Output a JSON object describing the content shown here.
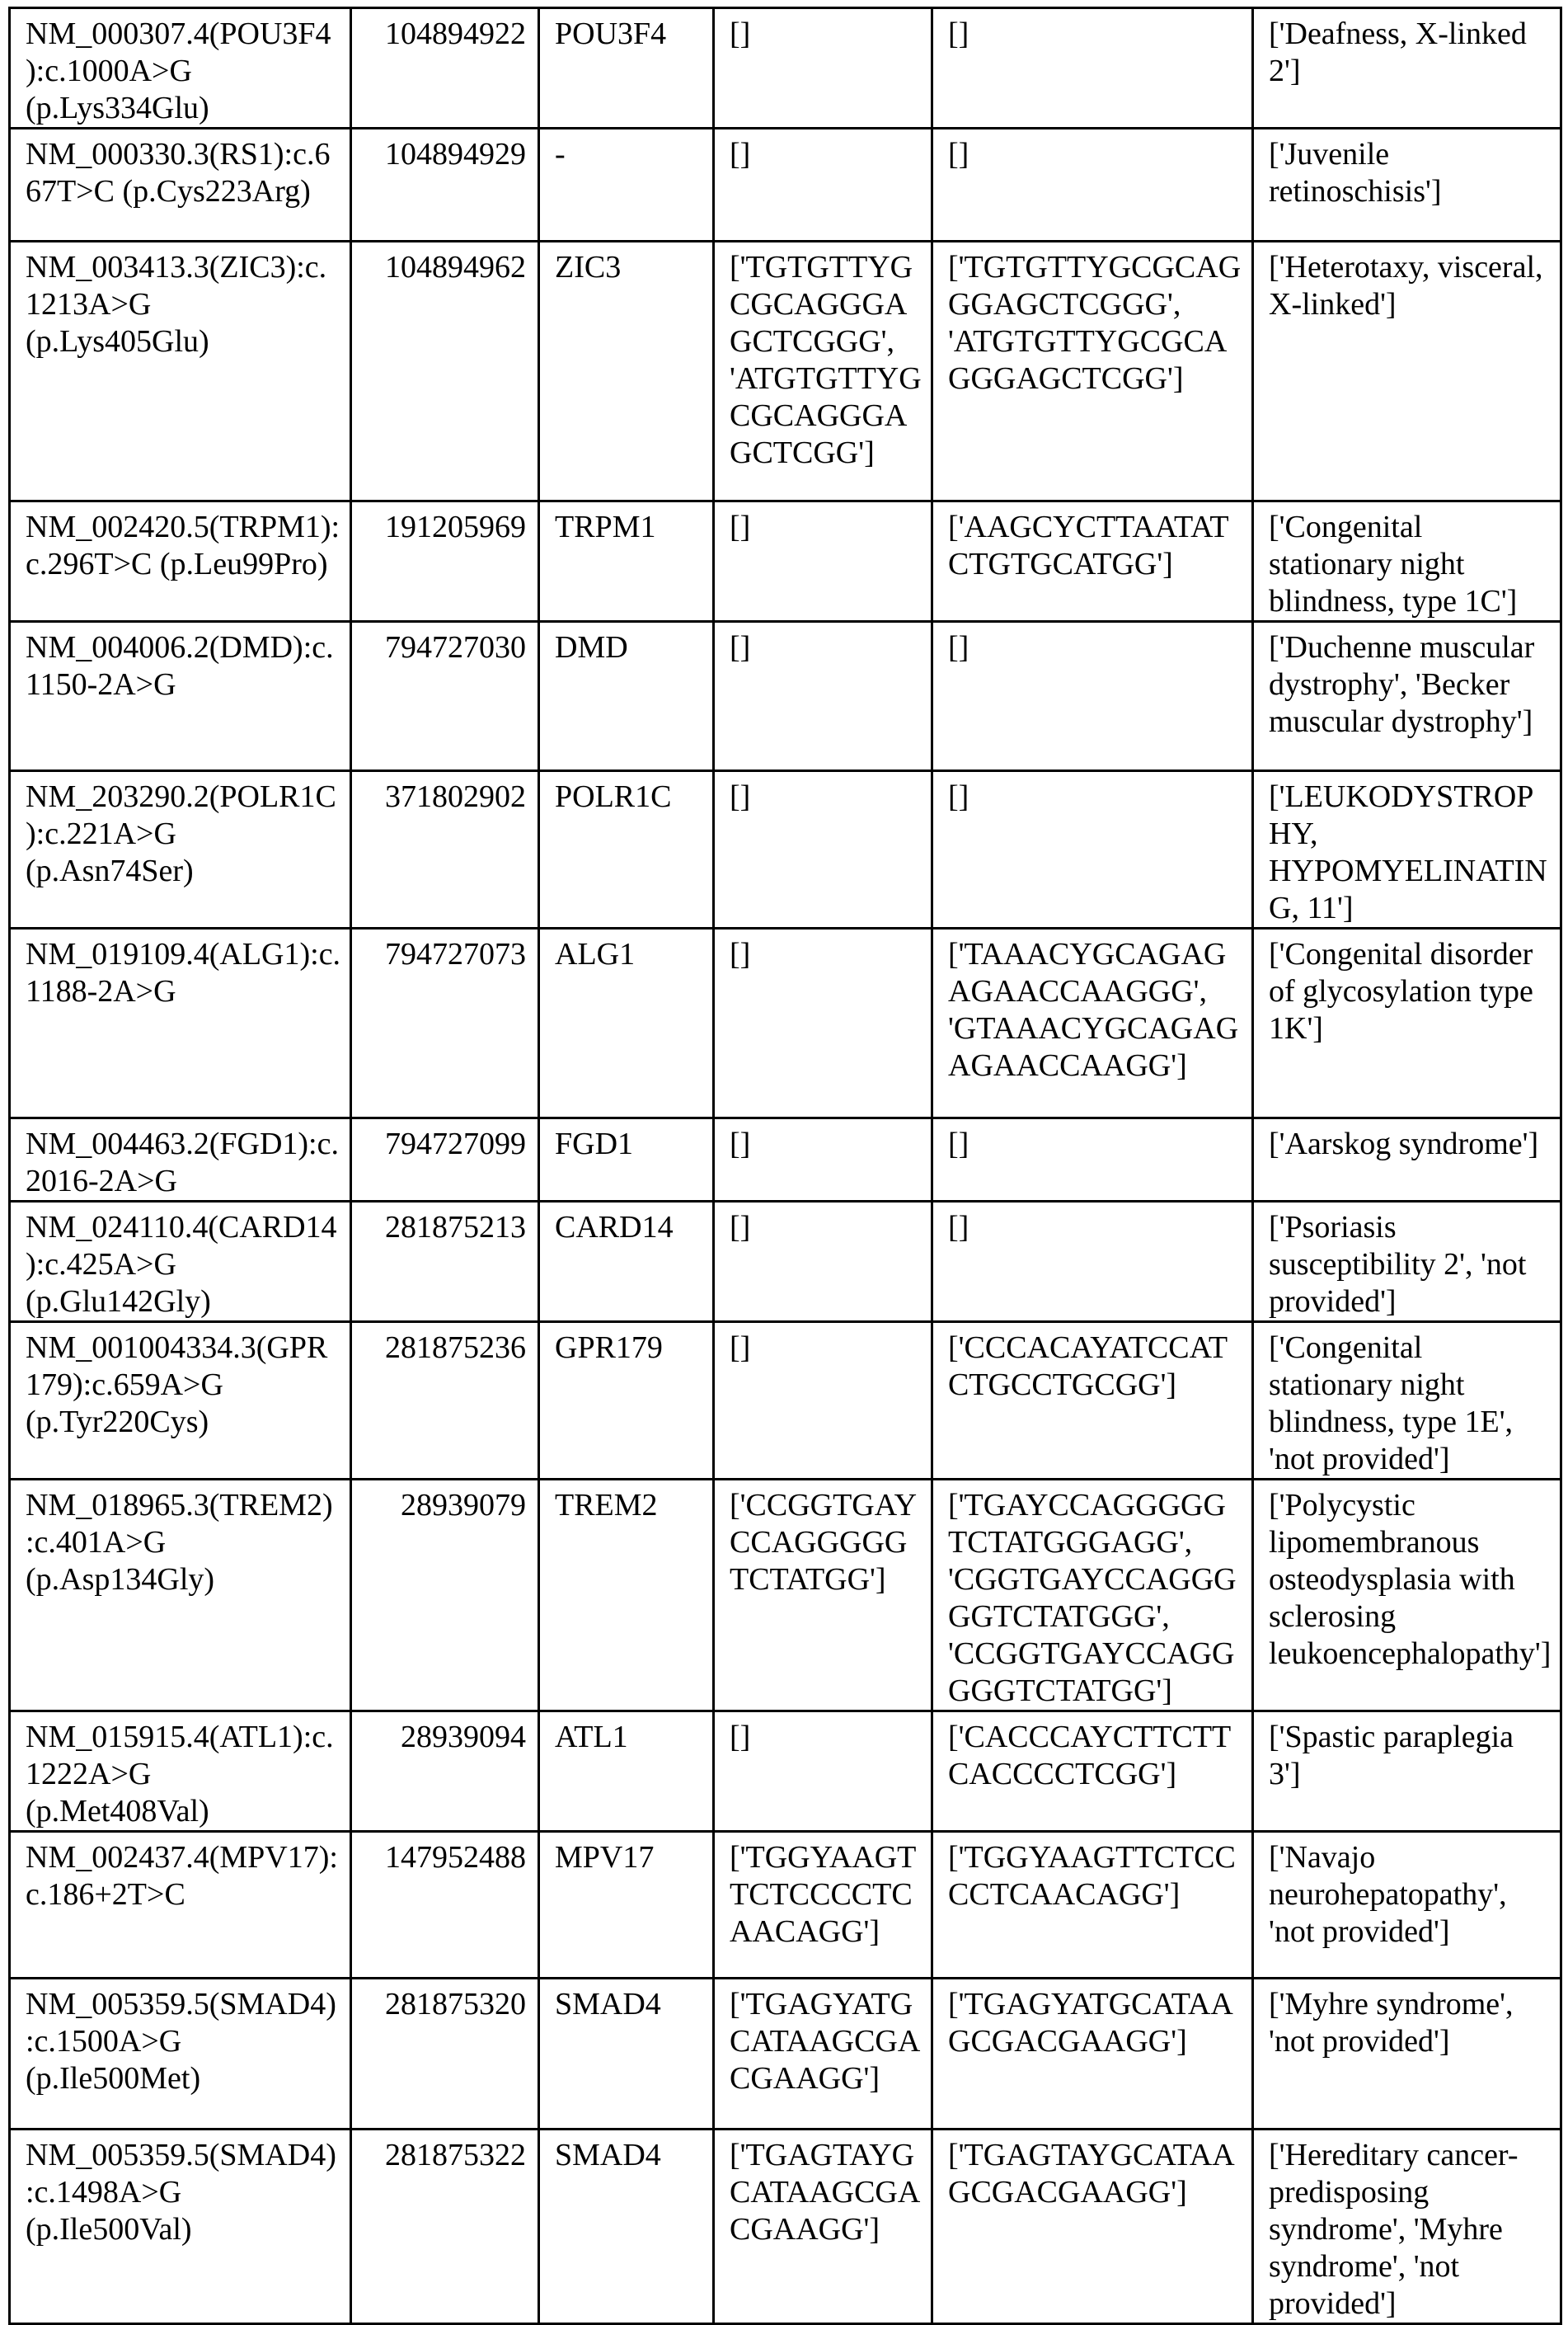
{
  "rows": [
    {
      "variant": "NM_000307.4(POU3F4):c.1000A>G (p.Lys334Glu)",
      "id": "104894922",
      "gene": "POU3F4",
      "col4": "[]",
      "col5": "[]",
      "condition": "['Deafness, X-linked 2']"
    },
    {
      "variant": "NM_000330.3(RS1):c.667T>C (p.Cys223Arg)",
      "id": "104894929",
      "gene": "-",
      "col4": "[]",
      "col5": "[]",
      "condition": "['Juvenile retinoschisis']"
    },
    {
      "variant": "NM_003413.3(ZIC3):c.1213A>G (p.Lys405Glu)",
      "id": "104894962",
      "gene": "ZIC3",
      "col4": "['TGTGTTYGCGCAGGGAGCTCGGG', 'ATGTGTTYGCGCAGGGAGCTCGG']",
      "col5": "['TGTGTTYGCGCAGGGAGCTCGGG', 'ATGTGTTYGCGCAGGGAGCTCGG']",
      "condition": "['Heterotaxy, visceral, X-linked']"
    },
    {
      "variant": "NM_002420.5(TRPM1):c.296T>C (p.Leu99Pro)",
      "id": "191205969",
      "gene": "TRPM1",
      "col4": "[]",
      "col5": "['AAGCYCTTAATATCTGTGCATGG']",
      "condition": "['Congenital stationary night blindness, type 1C']"
    },
    {
      "variant": "NM_004006.2(DMD):c.1150-2A>G",
      "id": "794727030",
      "gene": "DMD",
      "col4": "[]",
      "col5": "[]",
      "condition": "['Duchenne muscular dystrophy', 'Becker muscular dystrophy']"
    },
    {
      "variant": "NM_203290.2(POLR1C):c.221A>G (p.Asn74Ser)",
      "id": "371802902",
      "gene": "POLR1C",
      "col4": "[]",
      "col5": "[]",
      "condition": "['LEUKODYSTROPHY, HYPOMYELINATING, 11']"
    },
    {
      "variant": "NM_019109.4(ALG1):c.1188-2A>G",
      "id": "794727073",
      "gene": "ALG1",
      "col4": "[]",
      "col5": "['TAAACYGCAGAGAGAACCAAGGG', 'GTAAACYGCAGAGAGAACCAAGG']",
      "condition": "['Congenital disorder of glycosylation type 1K']"
    },
    {
      "variant": "NM_004463.2(FGD1):c.2016-2A>G",
      "id": "794727099",
      "gene": "FGD1",
      "col4": "[]",
      "col5": "[]",
      "condition": "['Aarskog syndrome']"
    },
    {
      "variant": "NM_024110.4(CARD14):c.425A>G (p.Glu142Gly)",
      "id": "281875213",
      "gene": "CARD14",
      "col4": "[]",
      "col5": "[]",
      "condition": "['Psoriasis susceptibility 2', 'not provided']"
    },
    {
      "variant": "NM_001004334.3(GPR179):c.659A>G (p.Tyr220Cys)",
      "id": "281875236",
      "gene": "GPR179",
      "col4": "[]",
      "col5": "['CCCACAYATCCATCTGCCTGCGG']",
      "condition": "['Congenital stationary night blindness, type 1E', 'not provided']"
    },
    {
      "variant": "NM_018965.3(TREM2):c.401A>G (p.Asp134Gly)",
      "id": "28939079",
      "gene": "TREM2",
      "col4": "['CCGGTGAYCCAGGGGGTCTATGG']",
      "col5": "['TGAYCCAGGGGGTCTATGGGAGG', 'CGGTGAYCCAGGGGGTCTATGGG', 'CCGGTGAYCCAGGGGGTCTATGG']",
      "condition": "['Polycystic lipomembranous osteodysplasia with sclerosing leukoencephalopathy']"
    },
    {
      "variant": "NM_015915.4(ATL1):c.1222A>G (p.Met408Val)",
      "id": "28939094",
      "gene": "ATL1",
      "col4": "[]",
      "col5": "['CACCCAYCTTCTTCACCCCTCGG']",
      "condition": "['Spastic paraplegia 3']"
    },
    {
      "variant": "NM_002437.4(MPV17):c.186+2T>C",
      "id": "147952488",
      "gene": "MPV17",
      "col4": "['TGGYAAGTTCTCCCCTCAACAGG']",
      "col5": "['TGGYAAGTTCTCCCCTCAACAGG']",
      "condition": "['Navajo neurohepatopathy', 'not provided']"
    },
    {
      "variant": "NM_005359.5(SMAD4):c.1500A>G (p.Ile500Met)",
      "id": "281875320",
      "gene": "SMAD4",
      "col4": "['TGAGYATGCATAAGCGACGAAGG']",
      "col5": "['TGAGYATGCATAAGCGACGAAGG']",
      "condition": "['Myhre syndrome', 'not provided']"
    },
    {
      "variant": "NM_005359.5(SMAD4):c.1498A>G (p.Ile500Val)",
      "id": "281875322",
      "gene": "SMAD4",
      "col4": "['TGAGTAYGCATAAGCGACGAAGG']",
      "col5": "['TGAGTAYGCATAAGCGACGAAGG']",
      "condition": "['Hereditary cancer-predisposing syndrome', 'Myhre syndrome', 'not provided']"
    }
  ]
}
